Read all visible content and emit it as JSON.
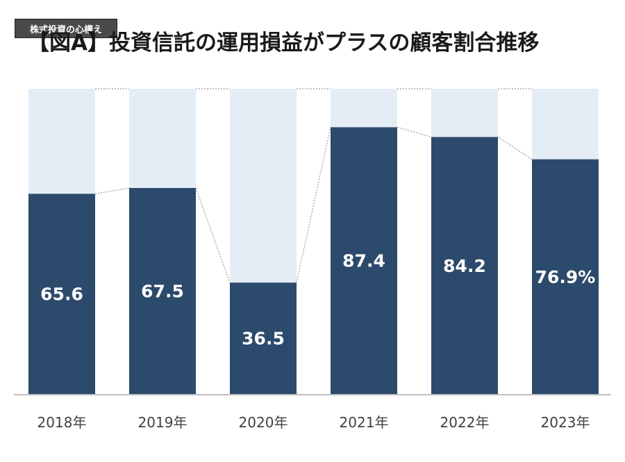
{
  "badge": "株式投資の心構え",
  "chart_data": {
    "type": "bar",
    "stacked_to_100": true,
    "title": "【図A】投資信託の運用損益がプラスの顧客割合推移",
    "categories": [
      "2018年",
      "2019年",
      "2020年",
      "2021年",
      "2022年",
      "2023年"
    ],
    "value_labels": [
      "65.6",
      "67.5",
      "36.5",
      "87.4",
      "84.2",
      "76.9%"
    ],
    "values": [
      65.6,
      67.5,
      36.5,
      87.4,
      84.2,
      76.9
    ],
    "ylim": [
      0,
      100
    ],
    "grid": false,
    "colors": {
      "value": "#2c4a6b",
      "remainder": "#e4edf5",
      "connector": "#9a9a9a",
      "axis": "#bfbfbf"
    }
  }
}
